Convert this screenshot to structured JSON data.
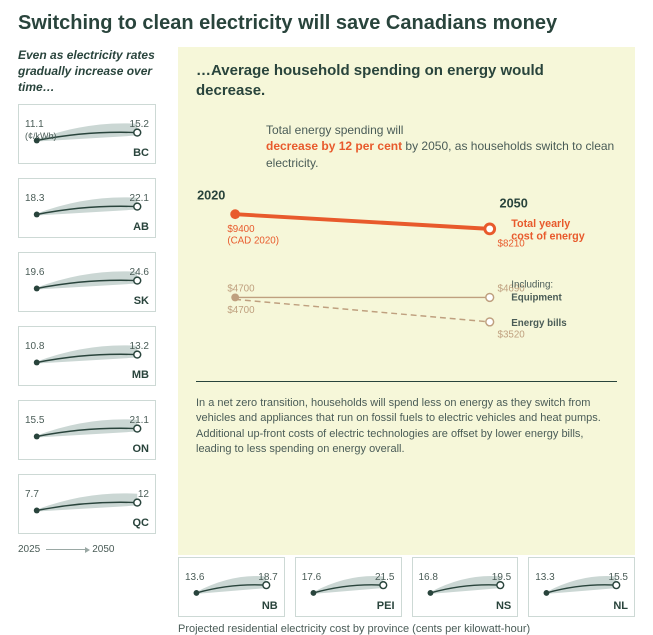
{
  "title": "Switching to clean electricity will save Canadians money",
  "left_subtitle": "Even as electricity rates gradually increase over time…",
  "unit_label": "(¢/kWh)",
  "timeline_start": "2025",
  "timeline_end": "2050",
  "mini_chart_style": {
    "border_color": "#cdd9d5",
    "width": 138,
    "height": 60,
    "line_color": "#29443c",
    "band_fill": "#c5d3cf",
    "dot_color": "#29443c",
    "end_dot_fill": "#ffffff"
  },
  "provinces_left": [
    {
      "code": "BC",
      "start": 11.1,
      "end": 15.2,
      "show_unit": true
    },
    {
      "code": "AB",
      "start": 18.3,
      "end": 22.1
    },
    {
      "code": "SK",
      "start": 19.6,
      "end": 24.6
    },
    {
      "code": "MB",
      "start": 10.8,
      "end": 13.2
    },
    {
      "code": "ON",
      "start": 15.5,
      "end": 21.1
    },
    {
      "code": "QC",
      "start": 7.7,
      "end": 12.0
    }
  ],
  "provinces_bottom": [
    {
      "code": "NB",
      "start": 13.6,
      "end": 18.7
    },
    {
      "code": "PEI",
      "start": 17.6,
      "end": 21.5
    },
    {
      "code": "NS",
      "start": 16.8,
      "end": 19.5
    },
    {
      "code": "NL",
      "start": 13.3,
      "end": 15.5
    }
  ],
  "bottom_caption": "Projected residential electricity cost by province (cents per kilowatt-hour)",
  "right": {
    "title": "…Average household spending on energy would decrease.",
    "summary_prefix": "Total energy spending will ",
    "summary_highlight": "decrease by 12 per cent",
    "summary_suffix": " by 2050, as households switch to clean electricity.",
    "year_start_label": "2020",
    "year_end_label": "2050",
    "total": {
      "label": "Total yearly cost of energy",
      "start": 9400,
      "start_label": "$9400",
      "start_sub": "(CAD 2020)",
      "end": 8210,
      "end_label": "$8210",
      "color": "#e85a2c",
      "line_width": 4
    },
    "equipment": {
      "label_heading": "Including:",
      "label": "Equipment",
      "start": 4700,
      "start_label": "$4700",
      "end": 4690,
      "end_label": "$4690",
      "color": "#bfa07f",
      "line_width": 1.5,
      "dash": "none"
    },
    "bills": {
      "label": "Energy bills",
      "start": 4700,
      "start_label": "$4700",
      "end": 3520,
      "end_label": "$3520",
      "color": "#bfa07f",
      "line_width": 1.5,
      "dash": "6,4"
    },
    "footnote": "In a net zero transition, households will spend less on energy as they switch from vehicles and appliances that run on fossil fuels to electric vehicles and heat pumps. Additional up-front costs of electric technologies are offset by lower energy bills, leading to less spending on energy overall."
  }
}
